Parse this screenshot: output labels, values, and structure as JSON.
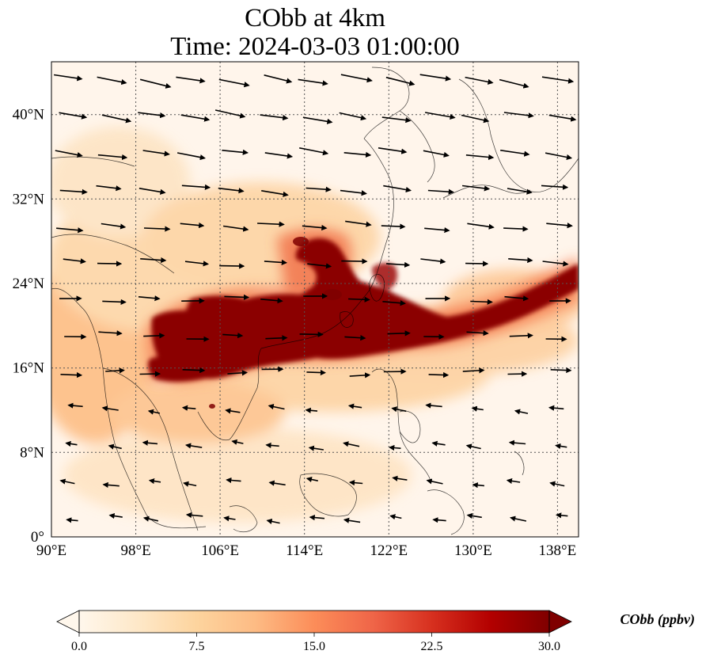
{
  "title": {
    "line1": "CObb at 4km",
    "line2": "Time: 2024-03-03 01:00:00"
  },
  "map": {
    "lon_range": [
      90,
      140
    ],
    "lat_range": [
      0,
      45
    ],
    "x_ticks": [
      {
        "value": 90,
        "label": "90°E"
      },
      {
        "value": 98,
        "label": "98°E"
      },
      {
        "value": 106,
        "label": "106°E"
      },
      {
        "value": 114,
        "label": "114°E"
      },
      {
        "value": 122,
        "label": "122°E"
      },
      {
        "value": 130,
        "label": "130°E"
      },
      {
        "value": 138,
        "label": "138°E"
      }
    ],
    "y_ticks": [
      {
        "value": 0,
        "label": "0°"
      },
      {
        "value": 8,
        "label": "8°N"
      },
      {
        "value": 16,
        "label": "16°N"
      },
      {
        "value": 24,
        "label": "24°N"
      },
      {
        "value": 32,
        "label": "32°N"
      },
      {
        "value": 40,
        "label": "40°N"
      }
    ],
    "gridlines": true,
    "background_color": "#fff5eb",
    "plume_color": "#8b0000"
  },
  "colorbar": {
    "title": "CObb (ppbv)",
    "min": 0.0,
    "max": 30.0,
    "extend": "both",
    "ticks": [
      {
        "value": 0.0,
        "label": "0.0"
      },
      {
        "value": 7.5,
        "label": "7.5"
      },
      {
        "value": 15.0,
        "label": "15.0"
      },
      {
        "value": 22.5,
        "label": "22.5"
      },
      {
        "value": 30.0,
        "label": "30.0"
      }
    ],
    "colormap": "OrRd",
    "colors": [
      "#fff7ec",
      "#fee8c8",
      "#fdd49e",
      "#fdbb84",
      "#fc8d59",
      "#ef6548",
      "#d7301f",
      "#b30000",
      "#7f0000"
    ]
  }
}
